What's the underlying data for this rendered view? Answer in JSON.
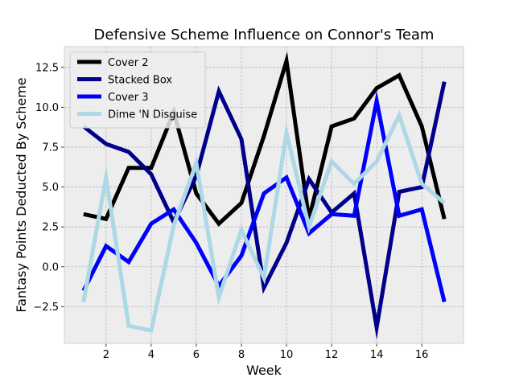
{
  "chart_data": {
    "type": "line",
    "title": "Defensive Scheme Influence on Connor's Team",
    "xlabel": "Week",
    "ylabel": "Fantasy Points Deducted By Scheme",
    "xlim": [
      0.15,
      17.85
    ],
    "ylim": [
      -4.8,
      13.8
    ],
    "x_ticks": [
      2,
      4,
      6,
      8,
      10,
      12,
      14,
      16
    ],
    "y_ticks": [
      -2.5,
      0.0,
      2.5,
      5.0,
      7.5,
      10.0,
      12.5
    ],
    "y_tick_labels": [
      "−2.5",
      "0.0",
      "2.5",
      "5.0",
      "7.5",
      "10.0",
      "12.5"
    ],
    "grid": true,
    "legend_position": "top-left",
    "x": [
      1,
      2,
      3,
      4,
      5,
      6,
      7,
      8,
      9,
      10,
      11,
      12,
      13,
      14,
      15,
      16,
      17
    ],
    "series": [
      {
        "name": "Cover 2",
        "color": "#000000",
        "values": [
          3.3,
          3.0,
          6.2,
          6.2,
          9.7,
          4.6,
          2.7,
          4.0,
          8.2,
          12.9,
          3.0,
          8.8,
          9.3,
          11.2,
          12.0,
          8.8,
          3.0
        ]
      },
      {
        "name": "Stacked Box",
        "color": "#00008b",
        "values": [
          8.8,
          7.7,
          7.2,
          5.8,
          2.8,
          5.7,
          11.0,
          8.0,
          -1.3,
          1.5,
          5.5,
          3.4,
          4.6,
          -3.8,
          4.7,
          5.0,
          11.6
        ]
      },
      {
        "name": "Cover 3",
        "color": "#0000ff",
        "values": [
          -1.5,
          1.3,
          0.3,
          2.7,
          3.6,
          1.5,
          -1.2,
          0.7,
          4.6,
          5.6,
          2.1,
          3.3,
          3.2,
          10.4,
          3.2,
          3.6,
          -2.2
        ]
      },
      {
        "name": "Dime 'N Disguise",
        "color": "#add8e6",
        "values": [
          -2.2,
          5.6,
          -3.7,
          -4.0,
          2.6,
          6.5,
          -1.9,
          2.3,
          -0.7,
          8.4,
          2.5,
          6.6,
          5.2,
          6.6,
          9.5,
          5.2,
          4.0
        ]
      }
    ]
  }
}
